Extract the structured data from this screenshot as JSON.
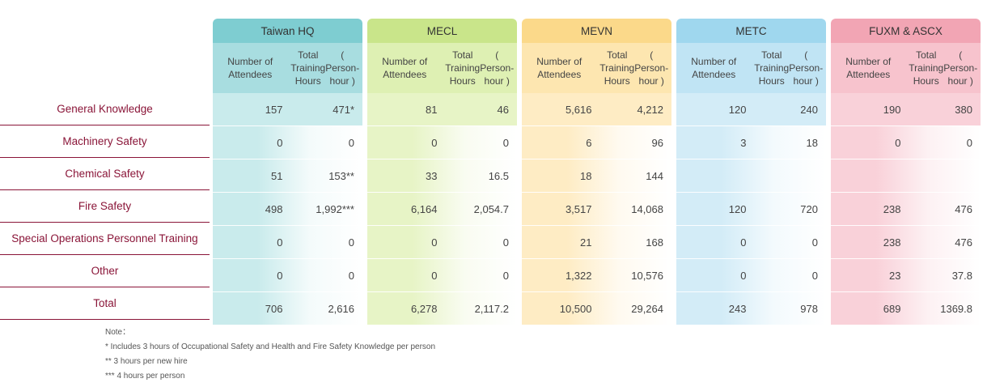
{
  "columns": {
    "attendees_label": "Number of Attendees",
    "hours_label_line1": "Total Training Hours",
    "hours_label_line2": "( Person-hour )"
  },
  "rows": [
    "General Knowledge",
    "Machinery Safety",
    "Chemical Safety",
    "Fire Safety",
    "Special Operations Personnel Training",
    "Other",
    "Total"
  ],
  "groups": [
    {
      "name": "Taiwan HQ",
      "color_head": "#7ecdd1",
      "color_sub": "#a8dde0",
      "color_body": "#c9ebec",
      "color_fade": "#f4fbfb",
      "values": [
        [
          "157",
          "471*"
        ],
        [
          "0",
          "0"
        ],
        [
          "51",
          "153**"
        ],
        [
          "498",
          "1,992***"
        ],
        [
          "0",
          "0"
        ],
        [
          "0",
          "0"
        ],
        [
          "706",
          "2,616"
        ]
      ]
    },
    {
      "name": "MECL",
      "color_head": "#c9e58a",
      "color_sub": "#def0b3",
      "color_body": "#e7f4c6",
      "color_fade": "#f9fcf1",
      "values": [
        [
          "81",
          "46"
        ],
        [
          "0",
          "0"
        ],
        [
          "33",
          "16.5"
        ],
        [
          "6,164",
          "2,054.7"
        ],
        [
          "0",
          "0"
        ],
        [
          "0",
          "0"
        ],
        [
          "6,278",
          "2,117.2"
        ]
      ]
    },
    {
      "name": "MEVN",
      "color_head": "#fbd98a",
      "color_sub": "#fde6b0",
      "color_body": "#feecc4",
      "color_fade": "#fffaf0",
      "values": [
        [
          "5,616",
          "4,212"
        ],
        [
          "6",
          "96"
        ],
        [
          "18",
          "144"
        ],
        [
          "3,517",
          "14,068"
        ],
        [
          "21",
          "168"
        ],
        [
          "1,322",
          "10,576"
        ],
        [
          "10,500",
          "29,264"
        ]
      ]
    },
    {
      "name": "METC",
      "color_head": "#9fd7ee",
      "color_sub": "#c0e4f4",
      "color_body": "#d3ecf7",
      "color_fade": "#f3fafd",
      "values": [
        [
          "120",
          "240"
        ],
        [
          "3",
          "18"
        ],
        [
          "",
          ""
        ],
        [
          "120",
          "720"
        ],
        [
          "0",
          "0"
        ],
        [
          "0",
          "0"
        ],
        [
          "243",
          "978"
        ]
      ]
    },
    {
      "name": "FUXM & ASCX",
      "color_head": "#f2a5b4",
      "color_sub": "#f7c3cd",
      "color_body": "#f9d1d9",
      "color_fade": "#fdf1f3",
      "values": [
        [
          "190",
          "380"
        ],
        [
          "0",
          "0"
        ],
        [
          "",
          ""
        ],
        [
          "238",
          "476"
        ],
        [
          "238",
          "476"
        ],
        [
          "23",
          "37.8"
        ],
        [
          "689",
          "1369.8"
        ]
      ]
    }
  ],
  "notes": {
    "title": "Note：",
    "n1": "*  Includes 3 hours of Occupational Safety and Health and Fire Safety Knowledge per person",
    "n2": "** 3 hours per new hire",
    "n3": "*** 4 hours per person"
  }
}
